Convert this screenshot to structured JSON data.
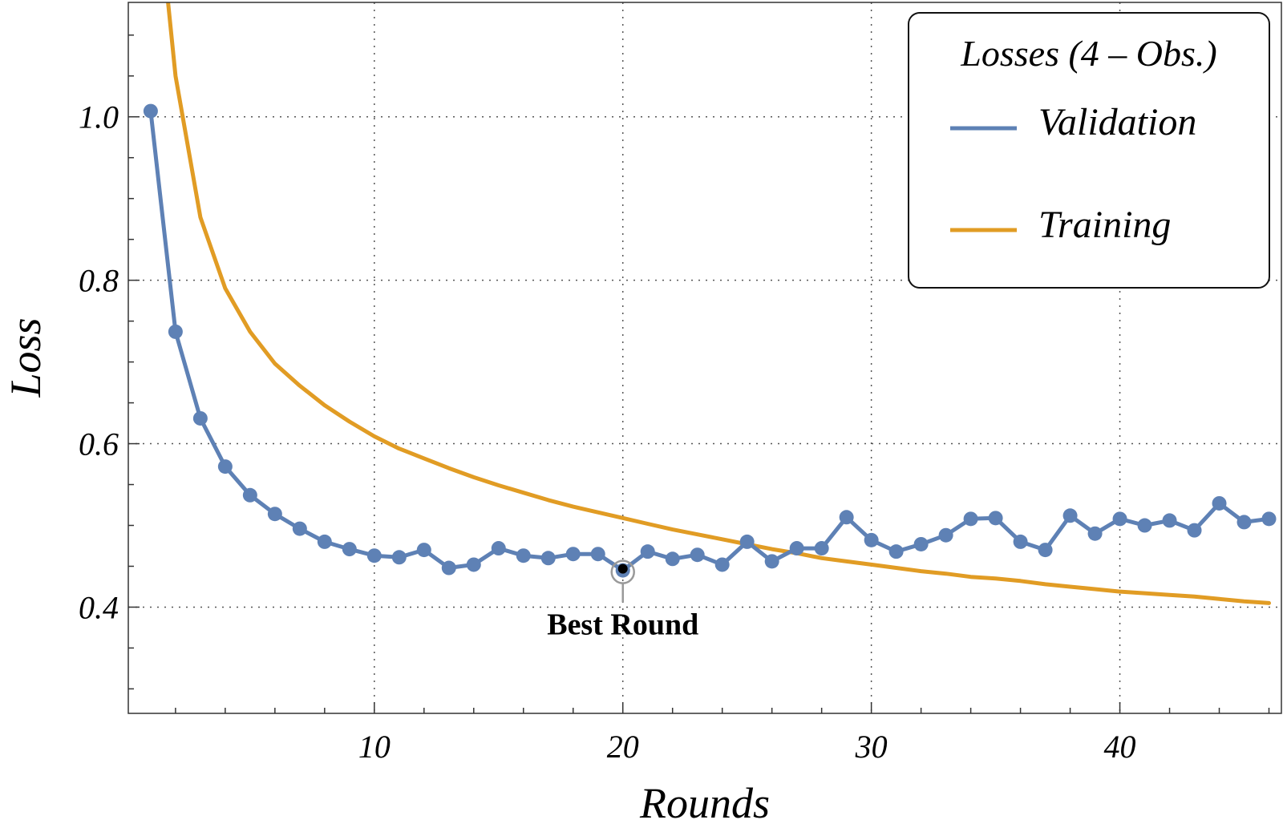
{
  "chart_data": {
    "type": "line",
    "xlabel": "Rounds",
    "ylabel": "Loss",
    "xlim": [
      0.1,
      46.5
    ],
    "ylim": [
      0.27,
      1.14
    ],
    "x_ticks": [
      10,
      20,
      30,
      40
    ],
    "x_tick_labels": [
      "10",
      "20",
      "30",
      "40"
    ],
    "y_ticks": [
      0.4,
      0.6,
      0.8,
      1.0
    ],
    "y_tick_labels": [
      "0.4",
      "0.6",
      "0.8",
      "1.0"
    ],
    "grid": true,
    "legend": {
      "title": "Losses (4 – Obs.)",
      "placement": "top-right"
    },
    "series": [
      {
        "name": "Validation",
        "color": "#5E81B5",
        "markers": true,
        "x": [
          1,
          2,
          3,
          4,
          5,
          6,
          7,
          8,
          9,
          10,
          11,
          12,
          13,
          14,
          15,
          16,
          17,
          18,
          19,
          20,
          21,
          22,
          23,
          24,
          25,
          26,
          27,
          28,
          29,
          30,
          31,
          32,
          33,
          34,
          35,
          36,
          37,
          38,
          39,
          40,
          41,
          42,
          43,
          44,
          45,
          46
        ],
        "y": [
          1.007,
          0.737,
          0.631,
          0.572,
          0.537,
          0.514,
          0.496,
          0.48,
          0.471,
          0.463,
          0.461,
          0.47,
          0.448,
          0.452,
          0.472,
          0.463,
          0.46,
          0.465,
          0.465,
          0.445,
          0.468,
          0.459,
          0.464,
          0.452,
          0.48,
          0.456,
          0.472,
          0.472,
          0.51,
          0.482,
          0.468,
          0.477,
          0.488,
          0.508,
          0.509,
          0.48,
          0.47,
          0.512,
          0.49,
          0.508,
          0.5,
          0.506,
          0.494,
          0.527,
          0.504,
          0.508
        ]
      },
      {
        "name": "Training",
        "color": "#E19C24",
        "markers": false,
        "x": [
          1,
          2,
          3,
          4,
          5,
          6,
          7,
          8,
          9,
          10,
          11,
          12,
          13,
          14,
          15,
          16,
          17,
          18,
          19,
          20,
          21,
          22,
          23,
          24,
          25,
          26,
          27,
          28,
          29,
          30,
          31,
          32,
          33,
          34,
          35,
          36,
          37,
          38,
          39,
          40,
          41,
          42,
          43,
          44,
          45,
          46
        ],
        "y": [
          1.35,
          1.05,
          0.877,
          0.79,
          0.737,
          0.698,
          0.671,
          0.647,
          0.627,
          0.609,
          0.594,
          0.582,
          0.57,
          0.559,
          0.549,
          0.54,
          0.531,
          0.523,
          0.516,
          0.509,
          0.502,
          0.495,
          0.489,
          0.483,
          0.477,
          0.471,
          0.466,
          0.46,
          0.456,
          0.452,
          0.448,
          0.444,
          0.441,
          0.437,
          0.435,
          0.432,
          0.428,
          0.425,
          0.422,
          0.419,
          0.417,
          0.415,
          0.413,
          0.41,
          0.407,
          0.405
        ]
      }
    ],
    "annotations": [
      {
        "text": "Best Round",
        "x": 20,
        "y": 0.445
      }
    ]
  }
}
